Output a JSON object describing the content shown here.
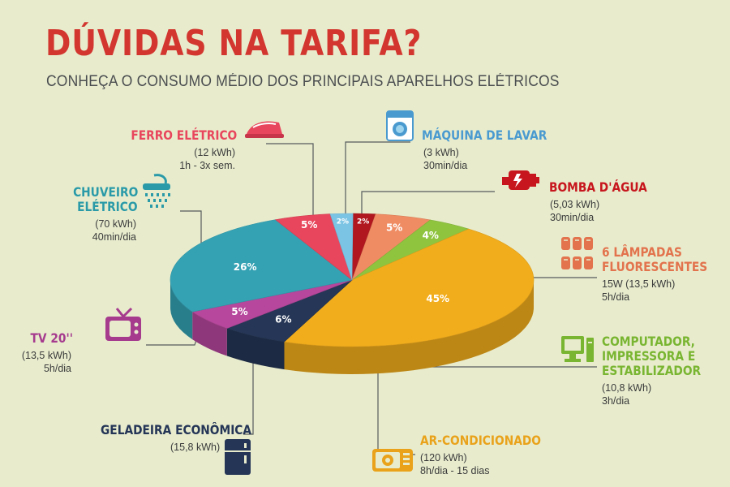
{
  "title": "DÚVIDAS NA TARIFA?",
  "subtitle": "CONHEÇA O CONSUMO MÉDIO DOS PRINCIPAIS APARELHOS ELÉTRICOS",
  "chart_data": {
    "type": "pie",
    "title": "DÚVIDAS NA TARIFA?",
    "subtitle": "CONHEÇA O CONSUMO MÉDIO DOS PRINCIPAIS APARELHOS ELÉTRICOS",
    "slices": [
      {
        "key": "bomba",
        "name": "BOMBA D'ÁGUA",
        "value": 2,
        "label": "2%",
        "color": "#b0171f",
        "detail": [
          "(5,03 kWh)",
          "30min/dia"
        ]
      },
      {
        "key": "lampadas",
        "name": "6 LÂMPADAS FLUORESCENTES",
        "value": 5,
        "label": "5%",
        "color": "#f08c63",
        "detail": [
          "15W (13,5 kWh)",
          "5h/dia"
        ]
      },
      {
        "key": "computador",
        "name": "COMPUTADOR, IMPRESSORA E ESTABILIZADOR",
        "value": 4,
        "label": "4%",
        "color": "#8fc43f",
        "detail": [
          "(10,8 kWh)",
          "3h/dia"
        ]
      },
      {
        "key": "ar",
        "name": "AR-CONDICIONADO",
        "value": 45,
        "label": "45%",
        "color": "#f2ad1c",
        "detail": [
          "(120 kWh)",
          "8h/dia - 15 dias"
        ]
      },
      {
        "key": "geladeira",
        "name": "GELADEIRA ECONÔMICA",
        "value": 6,
        "label": "6%",
        "color": "#253656",
        "detail": [
          "(15,8 kWh)"
        ]
      },
      {
        "key": "tv",
        "name": "TV 20''",
        "value": 5,
        "label": "5%",
        "color": "#b6479c",
        "detail": [
          "(13,5 kWh)",
          "5h/dia"
        ]
      },
      {
        "key": "chuveiro",
        "name": "CHUVEIRO ELÉTRICO",
        "value": 26,
        "label": "26%",
        "color": "#35a2b4",
        "detail": [
          "(70 kWh)",
          "40min/dia"
        ]
      },
      {
        "key": "ferro",
        "name": "FERRO ELÉTRICO",
        "value": 5,
        "label": "5%",
        "color": "#e8465c",
        "detail": [
          "(12 kWh)",
          "1h - 3x sem."
        ]
      },
      {
        "key": "maquina",
        "name": "MÁQUINA DE LAVAR",
        "value": 2,
        "label": "2%",
        "color": "#7cc4e4",
        "detail": [
          "(3 kWh)",
          "30min/dia"
        ]
      }
    ]
  },
  "labels": {
    "ferro": {
      "name": "FERRO ELÉTRICO",
      "line1": "(12 kWh)",
      "line2": "1h - 3x sem.",
      "color": "#e8465c"
    },
    "maquina": {
      "name": "MÁQUINA DE LAVAR",
      "line1": "(3 kWh)",
      "line2": "30min/dia",
      "color": "#4a9ad0"
    },
    "bomba": {
      "name": "BOMBA D'ÁGUA",
      "line1": "(5,03 kWh)",
      "line2": "30min/dia",
      "color": "#c7161d"
    },
    "chuveiro": {
      "name1": "CHUVEIRO",
      "name2": "ELÉTRICO",
      "line1": "(70 kWh)",
      "line2": "40min/dia",
      "color": "#2a9aa8"
    },
    "lampadas": {
      "name1": "6 LÂMPADAS",
      "name2": "FLUORESCENTES",
      "line1": "15W (13,5 kWh)",
      "line2": "5h/dia",
      "color": "#e2734d"
    },
    "tv": {
      "name": "TV 20''",
      "line1": "(13,5 kWh)",
      "line2": "5h/dia",
      "color": "#a63b8e"
    },
    "computador": {
      "name1": "COMPUTADOR,",
      "name2": "IMPRESSORA E",
      "name3": "ESTABILIZADOR",
      "line1": "(10,8 kWh)",
      "line2": "3h/dia",
      "color": "#79b531"
    },
    "geladeira": {
      "name": "GELADEIRA ECONÔMICA",
      "line1": "(15,8 kWh)",
      "color": "#243556"
    },
    "ar": {
      "name": "AR-CONDICIONADO",
      "line1": "(120 kWh)",
      "line2": "8h/dia - 15 dias",
      "color": "#e9a21a"
    }
  }
}
